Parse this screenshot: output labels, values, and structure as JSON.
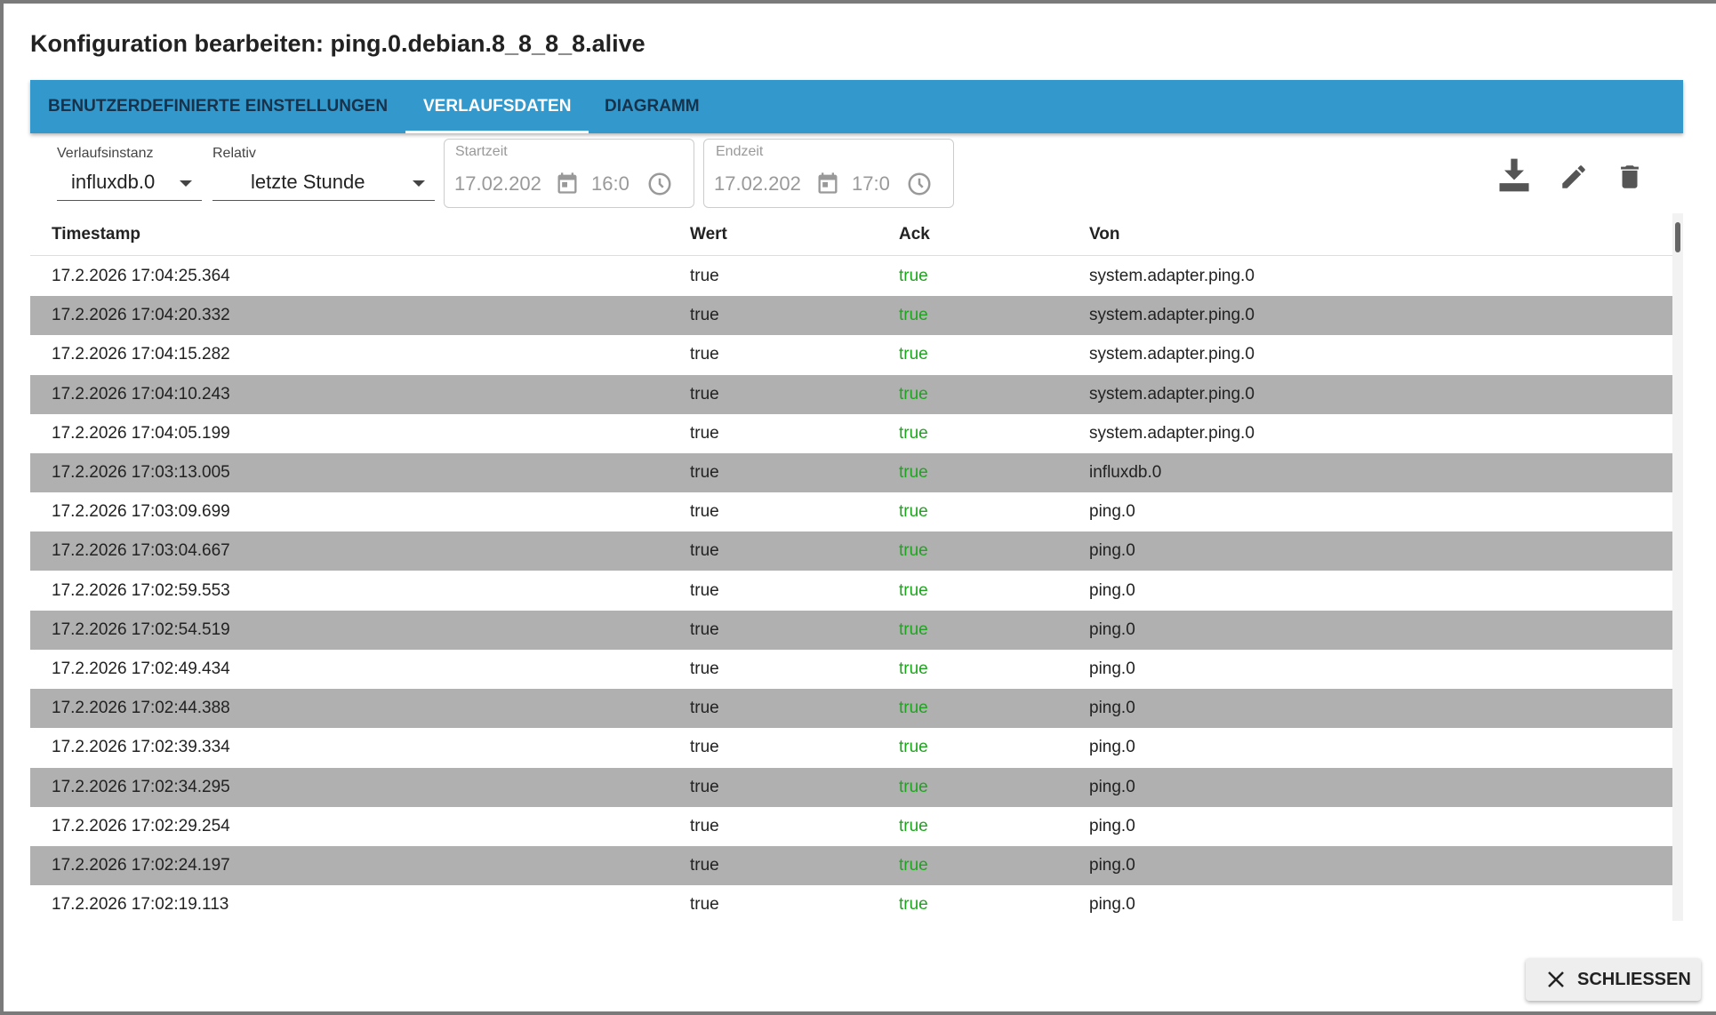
{
  "dialog": {
    "title": "Konfiguration bearbeiten: ping.0.debian.8_8_8_8.alive",
    "tabs": [
      "BENUTZERDEFINIERTE EINSTELLUNGEN",
      "VERLAUFSDATEN",
      "DIAGRAMM"
    ],
    "controls": {
      "instance": {
        "label": "Verlaufsinstanz",
        "value": "influxdb.0"
      },
      "relative": {
        "label": "Relativ",
        "value": "letzte Stunde"
      },
      "start": {
        "label": "Startzeit",
        "date": "17.02.202",
        "time": "16:0"
      },
      "end": {
        "label": "Endzeit",
        "date": "17.02.202",
        "time": "17:0"
      }
    },
    "table": {
      "columns": [
        "Timestamp",
        "Wert",
        "Ack",
        "Von"
      ],
      "rows": [
        [
          "17.2.2026 17:04:25.364",
          "true",
          "true",
          "system.adapter.ping.0"
        ],
        [
          "17.2.2026 17:04:20.332",
          "true",
          "true",
          "system.adapter.ping.0"
        ],
        [
          "17.2.2026 17:04:15.282",
          "true",
          "true",
          "system.adapter.ping.0"
        ],
        [
          "17.2.2026 17:04:10.243",
          "true",
          "true",
          "system.adapter.ping.0"
        ],
        [
          "17.2.2026 17:04:05.199",
          "true",
          "true",
          "system.adapter.ping.0"
        ],
        [
          "17.2.2026 17:03:13.005",
          "true",
          "true",
          "influxdb.0"
        ],
        [
          "17.2.2026 17:03:09.699",
          "true",
          "true",
          "ping.0"
        ],
        [
          "17.2.2026 17:03:04.667",
          "true",
          "true",
          "ping.0"
        ],
        [
          "17.2.2026 17:02:59.553",
          "true",
          "true",
          "ping.0"
        ],
        [
          "17.2.2026 17:02:54.519",
          "true",
          "true",
          "ping.0"
        ],
        [
          "17.2.2026 17:02:49.434",
          "true",
          "true",
          "ping.0"
        ],
        [
          "17.2.2026 17:02:44.388",
          "true",
          "true",
          "ping.0"
        ],
        [
          "17.2.2026 17:02:39.334",
          "true",
          "true",
          "ping.0"
        ],
        [
          "17.2.2026 17:02:34.295",
          "true",
          "true",
          "ping.0"
        ],
        [
          "17.2.2026 17:02:29.254",
          "true",
          "true",
          "ping.0"
        ],
        [
          "17.2.2026 17:02:24.197",
          "true",
          "true",
          "ping.0"
        ],
        [
          "17.2.2026 17:02:19.113",
          "true",
          "true",
          "ping.0"
        ]
      ]
    },
    "close": "SCHLIESSEN"
  }
}
